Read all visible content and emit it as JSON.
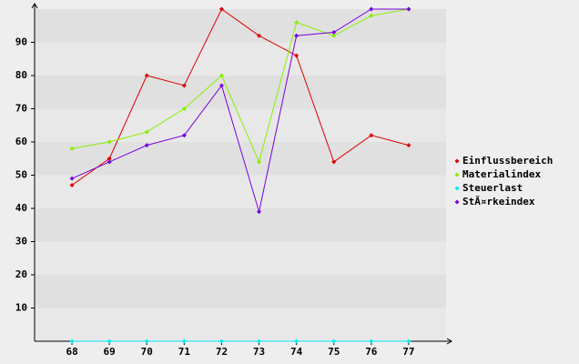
{
  "chart_data": {
    "type": "line",
    "x": [
      68,
      69,
      70,
      71,
      72,
      73,
      74,
      75,
      76,
      77
    ],
    "xlim": [
      67,
      78
    ],
    "ylim": [
      0,
      100
    ],
    "yticks": [
      10,
      20,
      30,
      40,
      50,
      60,
      70,
      80,
      90
    ],
    "grid": true,
    "legend": "right",
    "series": [
      {
        "name": "Einflussbereich",
        "color": "#dd0000",
        "values": [
          47,
          55,
          80,
          77,
          100,
          92,
          86,
          54,
          62,
          59
        ]
      },
      {
        "name": "Materialindex",
        "color": "#88ee00",
        "values": [
          58,
          60,
          63,
          70,
          80,
          54,
          96,
          92,
          98,
          100
        ]
      },
      {
        "name": "Steuerlast",
        "color": "#00eeee",
        "values": [
          0,
          0,
          0,
          0,
          0,
          0,
          0,
          0,
          0,
          0
        ]
      },
      {
        "name": "StÃ¤rkeindex",
        "color": "#7700dd",
        "values": [
          49,
          54,
          59,
          62,
          77,
          39,
          92,
          93,
          100,
          100
        ]
      }
    ]
  }
}
